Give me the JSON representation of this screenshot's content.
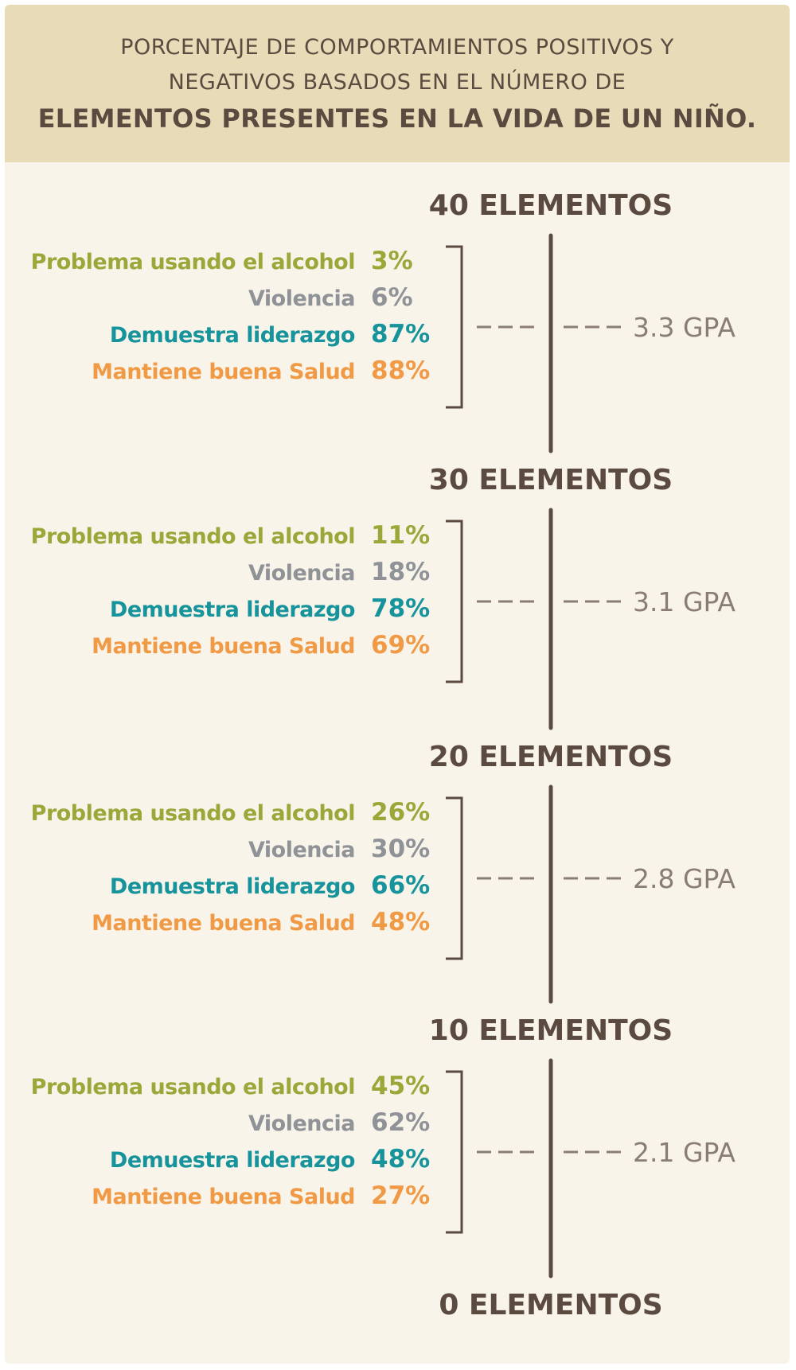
{
  "title": {
    "line1": "PORCENTAJE DE COMPORTAMIENTOS POSITIVOS Y",
    "line2": "NEGATIVOS BASADOS EN EL NÚMERO DE",
    "line3": "ELEMENTOS PRESENTES EN LA VIDA DE UN NIÑO."
  },
  "colors": {
    "header_bg": "#e8dcb8",
    "panel_bg": "#f8f4ea",
    "axis": "#5b4a40",
    "gpa": "#8a7d74",
    "alcohol": "#9aa83a",
    "violencia": "#8f9296",
    "liderazgo": "#16939b",
    "salud": "#f09a45"
  },
  "chart_data": {
    "type": "table",
    "levels": [
      "40 ELEMENTOS",
      "30 ELEMENTOS",
      "20 ELEMENTOS",
      "10 ELEMENTOS",
      "0 ELEMENTOS"
    ],
    "categories": [
      "Problema usando el alcohol",
      "Violencia",
      "Demuestra liderazgo",
      "Mantiene buena Salud"
    ],
    "groups": [
      {
        "values": [
          3,
          6,
          87,
          88
        ],
        "gpa": "3.3 GPA"
      },
      {
        "values": [
          11,
          18,
          78,
          69
        ],
        "gpa": "3.1 GPA"
      },
      {
        "values": [
          26,
          30,
          66,
          48
        ],
        "gpa": "2.8 GPA"
      },
      {
        "values": [
          45,
          62,
          48,
          27
        ],
        "gpa": "2.1 GPA"
      }
    ],
    "value_suffix": "%"
  }
}
